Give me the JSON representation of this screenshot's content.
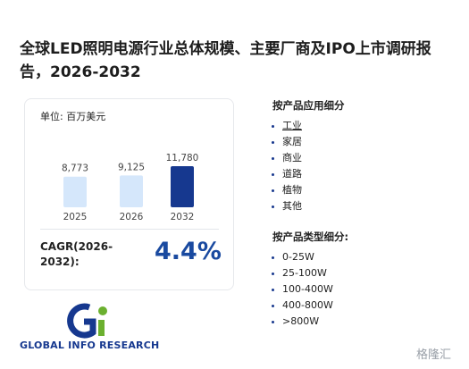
{
  "header": {
    "title": "全球LED照明电源行业总体规模、主要厂商及IPO上市调研报告，2026-2032"
  },
  "chart_data": {
    "type": "bar",
    "unit": "单位: 百万美元",
    "categories": [
      "2025",
      "2026",
      "2032"
    ],
    "values": [
      8773,
      9125,
      11780
    ],
    "value_labels": [
      "8,773",
      "9,125",
      "11,780"
    ],
    "colors": [
      "#d5e7fb",
      "#d5e7fb",
      "#16388f"
    ]
  },
  "cagr": {
    "label": "CAGR(2026-2032):",
    "value": "4.4%"
  },
  "logo": {
    "text": "GLOBAL INFO RESEARCH"
  },
  "sections": [
    {
      "title": "按产品应用细分",
      "items": [
        "工业",
        "家居",
        "商业",
        "道路",
        "植物",
        "其他"
      ]
    },
    {
      "title": "按产品类型细分:",
      "items": [
        "0-25W",
        "25-100W",
        "100-400W",
        "400-800W",
        ">800W"
      ]
    }
  ],
  "watermark": "格隆汇"
}
